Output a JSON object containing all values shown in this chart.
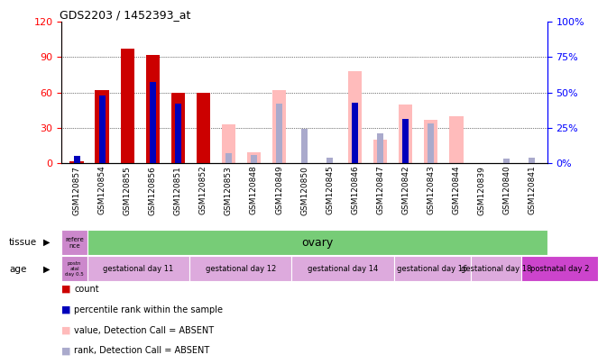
{
  "title": "GDS2203 / 1452393_at",
  "samples": [
    "GSM120857",
    "GSM120854",
    "GSM120855",
    "GSM120856",
    "GSM120851",
    "GSM120852",
    "GSM120853",
    "GSM120848",
    "GSM120849",
    "GSM120850",
    "GSM120845",
    "GSM120846",
    "GSM120847",
    "GSM120842",
    "GSM120843",
    "GSM120844",
    "GSM120839",
    "GSM120840",
    "GSM120841"
  ],
  "count_values": [
    2,
    62,
    97,
    92,
    60,
    60,
    0,
    0,
    0,
    0,
    0,
    0,
    0,
    0,
    0,
    0,
    0,
    0,
    0
  ],
  "rank_values": [
    5,
    48,
    0,
    57,
    42,
    0,
    0,
    0,
    0,
    0,
    0,
    43,
    0,
    31,
    0,
    0,
    0,
    0,
    0
  ],
  "absent_count": [
    0,
    0,
    0,
    3,
    0,
    0,
    33,
    9,
    62,
    0,
    0,
    78,
    20,
    50,
    37,
    40,
    0,
    0,
    0
  ],
  "absent_rank": [
    4,
    0,
    0,
    0,
    0,
    0,
    7,
    6,
    42,
    24,
    4,
    0,
    21,
    0,
    28,
    0,
    0,
    3,
    4
  ],
  "ylim_left": [
    0,
    120
  ],
  "ylim_right": [
    0,
    100
  ],
  "yticks_left": [
    0,
    30,
    60,
    90,
    120
  ],
  "yticks_right": [
    0,
    25,
    50,
    75,
    100
  ],
  "color_count": "#cc0000",
  "color_rank": "#0000bb",
  "color_absent_count": "#ffbbbb",
  "color_absent_rank": "#aaaacc",
  "tissue_ref_label": "refere\nnce",
  "tissue_ref_color": "#cc88cc",
  "tissue_ovary_label": "ovary",
  "tissue_ovary_color": "#77cc77",
  "age_ref_label": "postn\natal\nday 0.5",
  "age_ref_color": "#cc88cc",
  "age_groups": [
    {
      "label": "gestational day 11",
      "color": "#ddaadd",
      "n": 4
    },
    {
      "label": "gestational day 12",
      "color": "#ddaadd",
      "n": 4
    },
    {
      "label": "gestational day 14",
      "color": "#ddaadd",
      "n": 4
    },
    {
      "label": "gestational day 16",
      "color": "#ddaadd",
      "n": 3
    },
    {
      "label": "gestational day 18",
      "color": "#ddaadd",
      "n": 2
    },
    {
      "label": "postnatal day 2",
      "color": "#cc44cc",
      "n": 3
    }
  ],
  "legend_items": [
    {
      "label": "count",
      "color": "#cc0000"
    },
    {
      "label": "percentile rank within the sample",
      "color": "#0000bb"
    },
    {
      "label": "value, Detection Call = ABSENT",
      "color": "#ffbbbb"
    },
    {
      "label": "rank, Detection Call = ABSENT",
      "color": "#aaaacc"
    }
  ],
  "bar_wide": 0.55,
  "bar_narrow": 0.25
}
